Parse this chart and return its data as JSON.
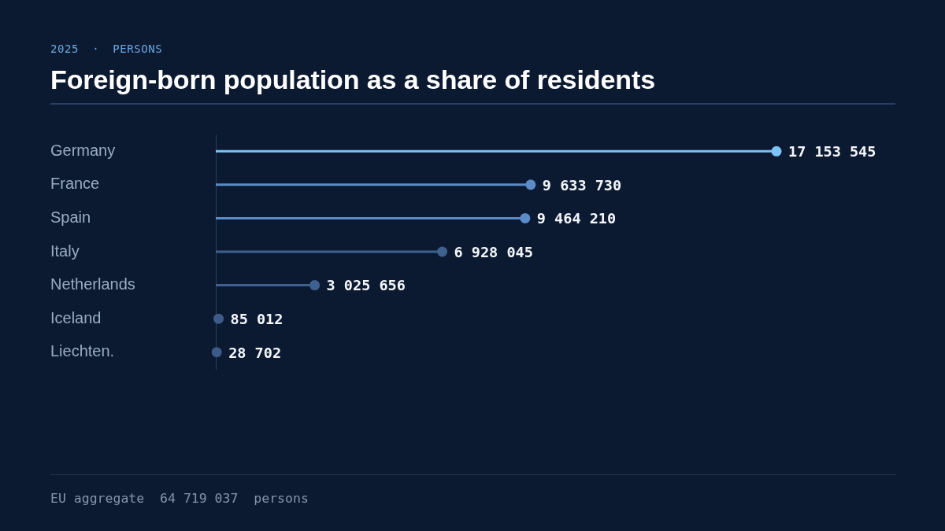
{
  "chart_data": {
    "type": "lollipop",
    "orientation": "horizontal",
    "title": "Foreign-born population as a share of residents",
    "subtitle": "2025 · PERSONS",
    "categories": [
      "Germany",
      "France",
      "Spain",
      "Italy",
      "Netherlands",
      "Iceland",
      "Liechten."
    ],
    "values": [
      17153545,
      9633730,
      9464210,
      6928045,
      3025656,
      85012,
      28702
    ],
    "colors": [
      "#7cc4f8",
      "#5b8cc8",
      "#5b8cc8",
      "#3f6190",
      "#3f6190",
      "#3d5b88",
      "#3d5b88"
    ],
    "value_labels": [
      "17 153 545",
      "9 633 730",
      "9 464 210",
      "6 928 045",
      "3 025 656",
      "85 012",
      "28 702"
    ],
    "marker": "circle",
    "annotations": [
      "EU aggregate  64 719 037  persons"
    ]
  }
}
